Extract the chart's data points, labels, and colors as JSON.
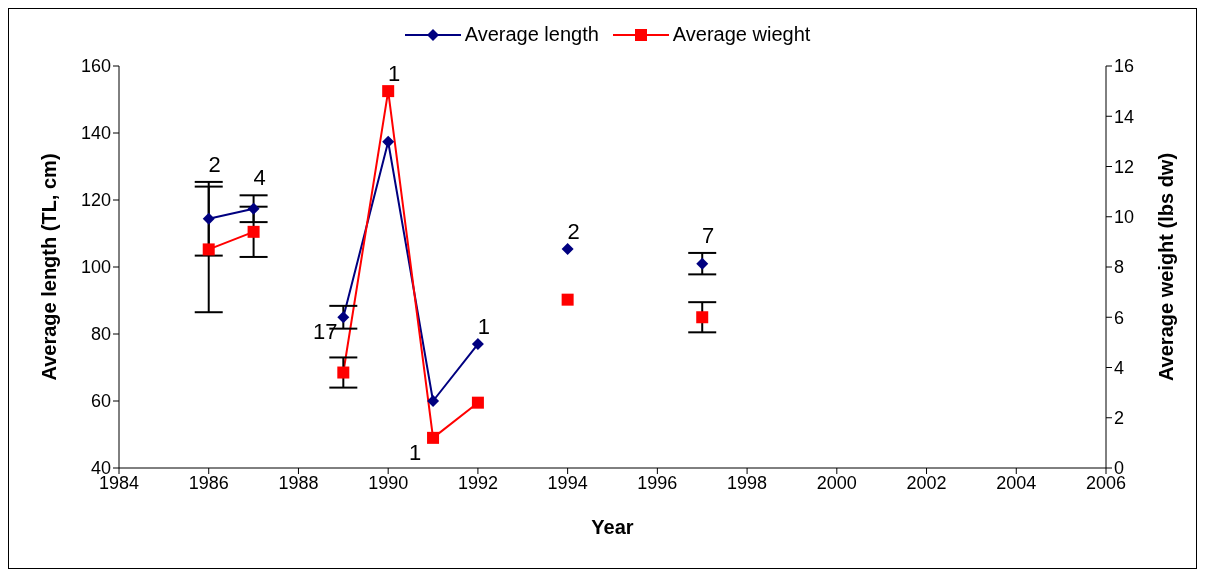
{
  "chart_data": {
    "type": "line",
    "xlabel": "Year",
    "ylabel": "Average length (TL, cm)",
    "y2label": "Average weight (lbs dw)",
    "x": [
      1986,
      1987,
      1988,
      1989,
      1990,
      1991,
      1992,
      1993,
      1994,
      1995,
      1997
    ],
    "series": [
      {
        "name": "Average length",
        "color": "#000080",
        "marker": "diamond",
        "values": [
          114.4,
          117.4,
          null,
          85.0,
          137.4,
          60.0,
          77.0,
          null,
          105.4,
          null,
          101.0
        ],
        "errors": [
          11,
          4,
          null,
          3.4,
          null,
          null,
          null,
          null,
          null,
          null,
          3.2
        ]
      },
      {
        "name": "Average wieght",
        "color": "#ff0000",
        "marker": "square",
        "axis": "y2",
        "values": [
          8.7,
          9.4,
          null,
          3.8,
          15.0,
          1.2,
          2.6,
          null,
          6.7,
          null,
          6.0
        ],
        "errors": [
          2.5,
          1.0,
          null,
          0.6,
          null,
          null,
          null,
          null,
          null,
          null,
          0.6
        ]
      }
    ],
    "xlim": [
      1984,
      2006
    ],
    "xticks": [
      1984,
      1986,
      1988,
      1990,
      1992,
      1994,
      1996,
      1998,
      2000,
      2002,
      2004,
      2006
    ],
    "ylim": [
      40,
      160
    ],
    "yticks": [
      40,
      60,
      80,
      100,
      120,
      140,
      160
    ],
    "y2lim": [
      0,
      16
    ],
    "y2ticks": [
      0,
      2,
      4,
      6,
      8,
      10,
      12,
      14,
      16
    ],
    "annotations": [
      {
        "text": "2",
        "x": 1986,
        "y": 114.4
      },
      {
        "text": "4",
        "x": 1987,
        "y": 117.4
      },
      {
        "text": "17",
        "x": 1989,
        "y": 85.0
      },
      {
        "text": "1",
        "x": 1990,
        "y": 152.5
      },
      {
        "text": "1",
        "x": 1991,
        "y": 49
      },
      {
        "text": "1",
        "x": 1992,
        "y": 77.0
      },
      {
        "text": "2",
        "x": 1994,
        "y": 105.4
      },
      {
        "text": "7",
        "x": 1997,
        "y": 101.0
      }
    ],
    "legend": "top",
    "line_style": "solid"
  }
}
